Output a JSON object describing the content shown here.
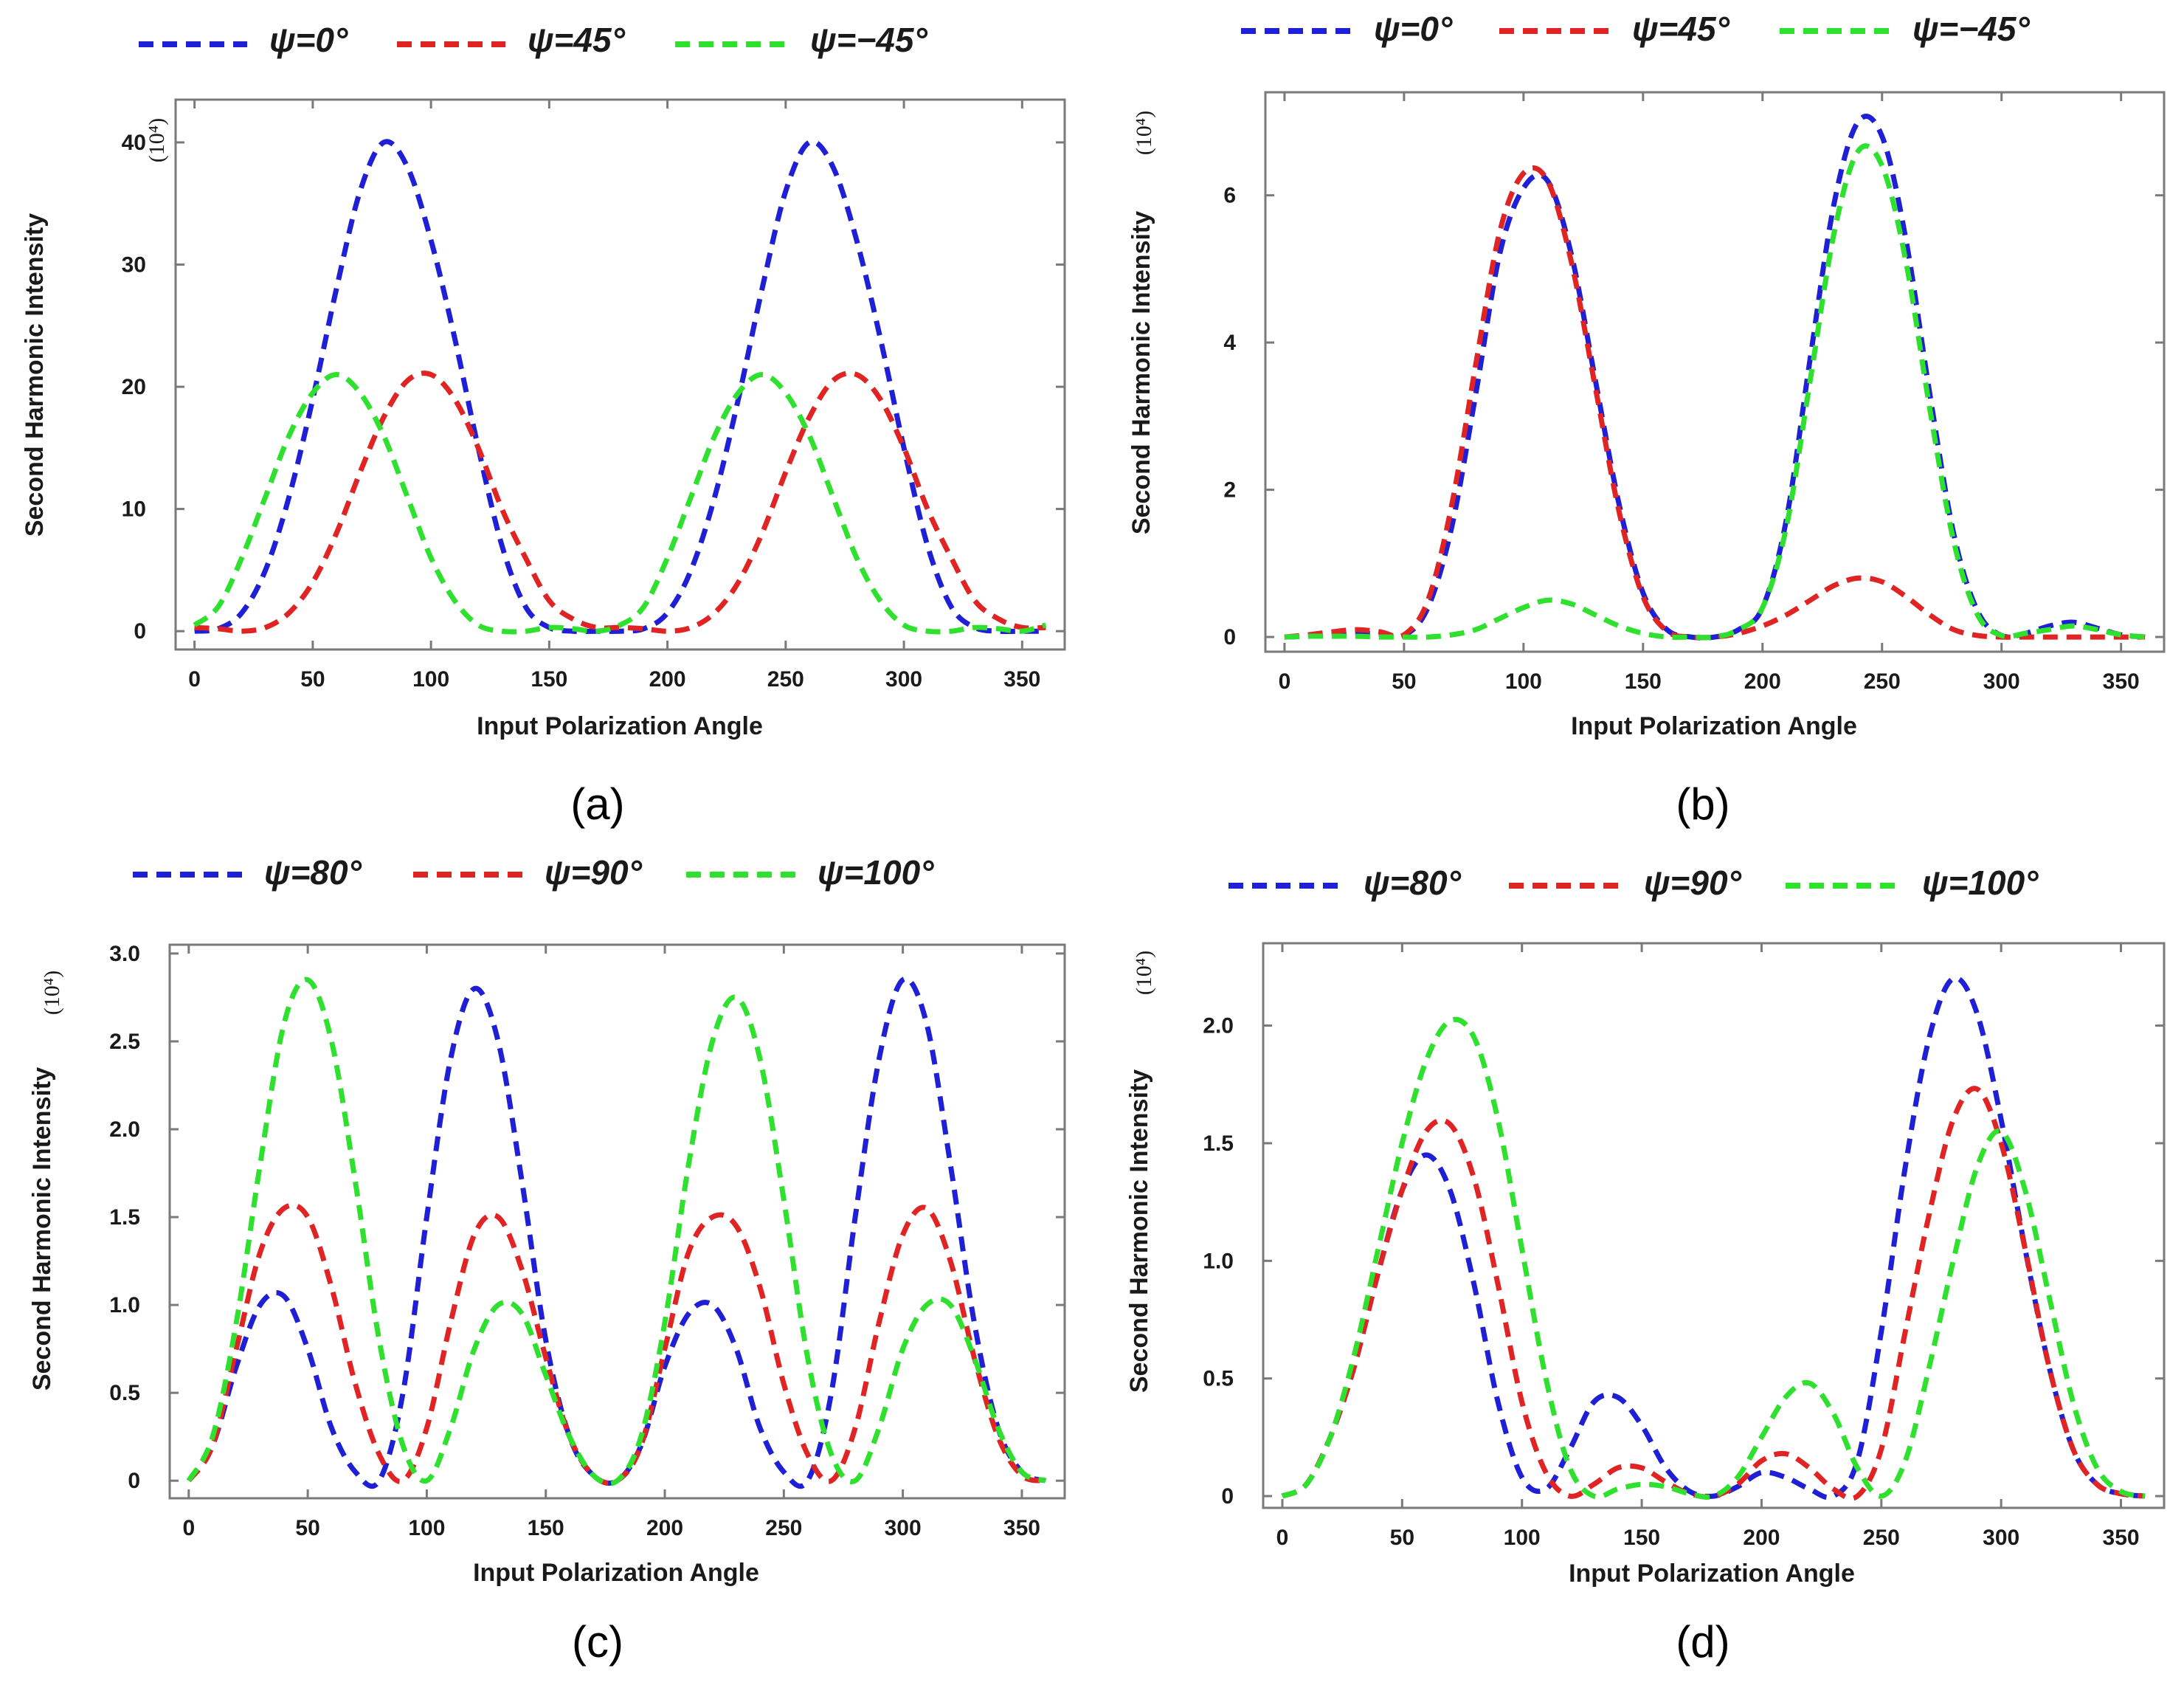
{
  "colors": {
    "blue": "#1f1fd6",
    "red": "#e02424",
    "green": "#2fe02f",
    "axis": "#7a7a7a"
  },
  "chart_data": [
    {
      "id": "a",
      "type": "line",
      "caption": "(a)",
      "xlabel": "Input  Polarization Angle",
      "ylabel": "Second Harmonic Intensity",
      "unit": "(10⁴)",
      "xlim": [
        -8,
        368
      ],
      "ylim": [
        -1.5,
        43.5
      ],
      "xticks": [
        0,
        50,
        100,
        150,
        200,
        250,
        300,
        350
      ],
      "yticks": [
        0,
        10,
        20,
        30,
        40
      ],
      "ytick_labels": [
        "0",
        "10",
        "20",
        "30",
        "40"
      ],
      "legend": [
        "ψ=0°",
        "ψ=45°",
        "ψ=−45°"
      ],
      "series": [
        {
          "name": "ψ=0°",
          "color": "blue",
          "x": [
            0,
            10,
            20,
            30,
            40,
            50,
            60,
            70,
            80,
            90,
            100,
            110,
            120,
            130,
            140,
            150,
            160,
            170,
            180,
            190,
            200,
            210,
            220,
            230,
            240,
            250,
            260,
            270,
            280,
            290,
            300,
            310,
            320,
            330,
            340,
            350,
            360
          ],
          "y": [
            0,
            0.2,
            1.5,
            5,
            11,
            19,
            28,
            36,
            40,
            38,
            32,
            24,
            15,
            7,
            2,
            0.3,
            0,
            0,
            0,
            0.2,
            1.5,
            5,
            11,
            19,
            28,
            36,
            40,
            38,
            32,
            24,
            15,
            7,
            2,
            0.3,
            0,
            0,
            0
          ]
        },
        {
          "name": "ψ=45°",
          "color": "red",
          "x": [
            0,
            10,
            20,
            30,
            40,
            50,
            60,
            70,
            80,
            90,
            100,
            110,
            120,
            130,
            140,
            150,
            160,
            170,
            180,
            190,
            200,
            210,
            220,
            230,
            240,
            250,
            260,
            270,
            280,
            290,
            300,
            310,
            320,
            330,
            340,
            350,
            360
          ],
          "y": [
            0.3,
            0.2,
            0,
            0.3,
            1.5,
            4,
            8,
            13,
            17.5,
            20.5,
            21,
            19,
            15,
            10,
            6,
            2.5,
            1,
            0.3,
            0.3,
            0.2,
            0,
            0.3,
            1.5,
            4,
            8,
            13,
            17.5,
            20.5,
            21,
            19,
            15,
            10,
            6,
            2.5,
            1,
            0.3,
            0.3
          ]
        },
        {
          "name": "ψ=−45°",
          "color": "green",
          "x": [
            0,
            10,
            20,
            30,
            40,
            50,
            60,
            70,
            80,
            90,
            100,
            110,
            120,
            130,
            140,
            150,
            160,
            170,
            180,
            190,
            200,
            210,
            220,
            230,
            240,
            250,
            260,
            270,
            280,
            290,
            300,
            310,
            320,
            330,
            340,
            350,
            360
          ],
          "y": [
            0.5,
            2,
            6,
            11,
            16,
            19.5,
            21,
            19.5,
            16,
            11,
            6,
            2.5,
            0.5,
            0,
            0,
            0.3,
            0.2,
            0,
            0.5,
            2,
            6,
            11,
            16,
            19.5,
            21,
            19.5,
            16,
            11,
            6,
            2.5,
            0.5,
            0,
            0,
            0.3,
            0.2,
            0,
            0.5
          ]
        }
      ]
    },
    {
      "id": "b",
      "type": "line",
      "caption": "(b)",
      "xlabel": "Input  Polarization Angle",
      "ylabel": "Second Harmonic Intensity",
      "unit": "(10⁴)",
      "xlim": [
        -8,
        368
      ],
      "ylim": [
        -0.2,
        7.4
      ],
      "xticks": [
        0,
        50,
        100,
        150,
        200,
        250,
        300,
        350
      ],
      "yticks": [
        0,
        2,
        4,
        6
      ],
      "ytick_labels": [
        "0",
        "2",
        "4",
        "6"
      ],
      "legend": [
        "ψ=0°",
        "ψ=45°",
        "ψ=−45°"
      ],
      "series": [
        {
          "name": "ψ=0°",
          "color": "blue",
          "x": [
            0,
            10,
            20,
            30,
            40,
            50,
            60,
            70,
            80,
            90,
            100,
            110,
            120,
            130,
            140,
            150,
            160,
            170,
            180,
            190,
            200,
            210,
            220,
            230,
            240,
            250,
            260,
            270,
            280,
            290,
            300,
            310,
            320,
            330,
            340,
            350,
            360
          ],
          "y": [
            0,
            0.01,
            0.03,
            0.05,
            0.04,
            0.02,
            0.4,
            1.5,
            3.3,
            5.2,
            6.1,
            6.2,
            5.2,
            3.5,
            1.8,
            0.6,
            0.1,
            0,
            0,
            0.1,
            0.4,
            1.6,
            3.8,
            5.9,
            7.0,
            6.8,
            5.4,
            3.3,
            1.4,
            0.35,
            0.02,
            0.05,
            0.15,
            0.2,
            0.12,
            0.03,
            0
          ]
        },
        {
          "name": "ψ=45°",
          "color": "red",
          "x": [
            0,
            10,
            20,
            30,
            40,
            50,
            60,
            70,
            80,
            90,
            100,
            110,
            120,
            130,
            140,
            150,
            160,
            170,
            180,
            190,
            200,
            210,
            220,
            230,
            240,
            250,
            260,
            270,
            280,
            290,
            300,
            310,
            320,
            330,
            340,
            350,
            360
          ],
          "y": [
            0,
            0.03,
            0.07,
            0.1,
            0.07,
            0.03,
            0.5,
            1.8,
            3.7,
            5.5,
            6.3,
            6.2,
            5.1,
            3.4,
            1.7,
            0.55,
            0.08,
            0,
            0,
            0.05,
            0.15,
            0.3,
            0.5,
            0.7,
            0.8,
            0.75,
            0.55,
            0.3,
            0.1,
            0.02,
            0,
            0,
            0,
            0,
            0,
            0,
            0
          ]
        },
        {
          "name": "ψ=−45°",
          "color": "green",
          "x": [
            0,
            10,
            20,
            30,
            40,
            50,
            60,
            70,
            80,
            90,
            100,
            110,
            120,
            130,
            140,
            150,
            160,
            170,
            180,
            190,
            200,
            210,
            220,
            230,
            240,
            250,
            260,
            270,
            280,
            290,
            300,
            310,
            320,
            330,
            340,
            350,
            360
          ],
          "y": [
            0,
            0.01,
            0.01,
            0.01,
            0,
            0,
            0,
            0.03,
            0.1,
            0.25,
            0.4,
            0.5,
            0.45,
            0.3,
            0.15,
            0.05,
            0,
            0,
            0,
            0.1,
            0.4,
            1.5,
            3.5,
            5.5,
            6.6,
            6.4,
            5.1,
            3.1,
            1.3,
            0.3,
            0.02,
            0.05,
            0.1,
            0.15,
            0.1,
            0.03,
            0
          ]
        }
      ]
    },
    {
      "id": "c",
      "type": "line",
      "caption": "(c)",
      "xlabel": "Input Polarization Angle",
      "ylabel": "Second Harmonic Intensity",
      "unit": "(10⁴)",
      "xlim": [
        -8,
        368
      ],
      "ylim": [
        -0.1,
        3.05
      ],
      "xticks": [
        0,
        50,
        100,
        150,
        200,
        250,
        300,
        350
      ],
      "yticks": [
        0,
        0.5,
        1.0,
        1.5,
        2.0,
        2.5,
        3.0
      ],
      "ytick_labels": [
        "0",
        "0.5",
        "1.0",
        "1.5",
        "2.0",
        "2.5",
        "3.0"
      ],
      "legend": [
        "ψ=80°",
        "ψ=90°",
        "ψ=100°"
      ],
      "series": [
        {
          "name": "ψ=80°",
          "color": "blue",
          "x": [
            0,
            10,
            20,
            30,
            40,
            50,
            60,
            70,
            80,
            90,
            100,
            110,
            120,
            130,
            140,
            150,
            160,
            170,
            180,
            190,
            200,
            210,
            220,
            230,
            240,
            250,
            260,
            270,
            280,
            290,
            300,
            310,
            320,
            330,
            340,
            350,
            360
          ],
          "y": [
            0,
            0.2,
            0.65,
            1.0,
            1.05,
            0.75,
            0.3,
            0.05,
            0,
            0.5,
            1.5,
            2.4,
            2.8,
            2.5,
            1.7,
            0.8,
            0.25,
            0.03,
            0,
            0.2,
            0.65,
            0.95,
            1.0,
            0.75,
            0.3,
            0.05,
            0,
            0.5,
            1.5,
            2.4,
            2.85,
            2.6,
            1.8,
            0.9,
            0.3,
            0.05,
            0
          ]
        },
        {
          "name": "ψ=90°",
          "color": "red",
          "x": [
            0,
            10,
            20,
            30,
            40,
            50,
            60,
            70,
            80,
            90,
            100,
            110,
            120,
            130,
            140,
            150,
            160,
            170,
            180,
            190,
            200,
            210,
            220,
            230,
            240,
            250,
            260,
            270,
            280,
            290,
            300,
            310,
            320,
            330,
            340,
            350,
            360
          ],
          "y": [
            0,
            0.2,
            0.75,
            1.3,
            1.55,
            1.5,
            1.1,
            0.55,
            0.15,
            0,
            0.3,
            0.9,
            1.4,
            1.5,
            1.2,
            0.7,
            0.25,
            0.03,
            0,
            0.2,
            0.75,
            1.3,
            1.5,
            1.45,
            1.1,
            0.55,
            0.15,
            0,
            0.3,
            0.9,
            1.4,
            1.55,
            1.25,
            0.7,
            0.25,
            0.03,
            0
          ]
        },
        {
          "name": "ψ=100°",
          "color": "green",
          "x": [
            0,
            10,
            20,
            30,
            40,
            50,
            60,
            70,
            80,
            90,
            100,
            110,
            120,
            130,
            140,
            150,
            160,
            170,
            180,
            190,
            200,
            210,
            220,
            230,
            240,
            250,
            260,
            270,
            280,
            290,
            300,
            310,
            320,
            330,
            340,
            350,
            360
          ],
          "y": [
            0,
            0.25,
            0.9,
            1.8,
            2.6,
            2.85,
            2.5,
            1.7,
            0.8,
            0.2,
            0,
            0.3,
            0.75,
            1.0,
            0.95,
            0.6,
            0.25,
            0.03,
            0,
            0.25,
            0.9,
            1.8,
            2.5,
            2.75,
            2.4,
            1.6,
            0.7,
            0.15,
            0,
            0.3,
            0.75,
            1.0,
            1.0,
            0.7,
            0.3,
            0.05,
            0
          ]
        }
      ]
    },
    {
      "id": "d",
      "type": "line",
      "caption": "(d)",
      "xlabel": "Input Polarization Angle",
      "ylabel": "Second Harmonic Intensity",
      "unit": "(10⁴)",
      "xlim": [
        -8,
        368
      ],
      "ylim": [
        -0.05,
        2.35
      ],
      "xticks": [
        0,
        50,
        100,
        150,
        200,
        250,
        300,
        350
      ],
      "yticks": [
        0,
        0.5,
        1.0,
        1.5,
        2.0
      ],
      "ytick_labels": [
        "0",
        "0.5",
        "1.0",
        "1.5",
        "2.0"
      ],
      "legend": [
        "ψ=80°",
        "ψ=90°",
        "ψ=100°"
      ],
      "series": [
        {
          "name": "ψ=80°",
          "color": "blue",
          "x": [
            0,
            10,
            20,
            30,
            40,
            50,
            60,
            70,
            80,
            90,
            100,
            110,
            120,
            130,
            140,
            150,
            160,
            170,
            180,
            190,
            200,
            210,
            220,
            230,
            240,
            250,
            260,
            270,
            280,
            290,
            300,
            310,
            320,
            330,
            340,
            350,
            360
          ],
          "y": [
            0,
            0.05,
            0.25,
            0.55,
            0.95,
            1.3,
            1.45,
            1.3,
            0.9,
            0.4,
            0.08,
            0.03,
            0.2,
            0.4,
            0.42,
            0.3,
            0.12,
            0.02,
            0,
            0.04,
            0.1,
            0.08,
            0.03,
            0,
            0.15,
            0.7,
            1.4,
            1.95,
            2.2,
            2.05,
            1.6,
            1.05,
            0.55,
            0.2,
            0.05,
            0.01,
            0
          ]
        },
        {
          "name": "ψ=90°",
          "color": "red",
          "x": [
            0,
            10,
            20,
            30,
            40,
            50,
            60,
            70,
            80,
            90,
            100,
            110,
            120,
            130,
            140,
            150,
            160,
            170,
            180,
            190,
            200,
            210,
            220,
            230,
            240,
            250,
            260,
            270,
            280,
            290,
            300,
            310,
            320,
            330,
            340,
            350,
            360
          ],
          "y": [
            0,
            0.05,
            0.25,
            0.55,
            0.95,
            1.3,
            1.55,
            1.58,
            1.35,
            0.9,
            0.4,
            0.1,
            0,
            0.05,
            0.12,
            0.12,
            0.06,
            0.01,
            0,
            0.05,
            0.15,
            0.18,
            0.12,
            0.03,
            0,
            0.2,
            0.7,
            1.2,
            1.6,
            1.73,
            1.5,
            1.05,
            0.55,
            0.2,
            0.05,
            0.01,
            0
          ]
        },
        {
          "name": "ψ=100°",
          "color": "green",
          "x": [
            0,
            10,
            20,
            30,
            40,
            50,
            60,
            70,
            80,
            90,
            100,
            110,
            120,
            130,
            140,
            150,
            160,
            170,
            180,
            190,
            200,
            210,
            220,
            230,
            240,
            250,
            260,
            270,
            280,
            290,
            300,
            310,
            320,
            330,
            340,
            350,
            360
          ],
          "y": [
            0,
            0.05,
            0.25,
            0.6,
            1.05,
            1.5,
            1.85,
            2.02,
            1.95,
            1.6,
            1.05,
            0.5,
            0.12,
            0,
            0.03,
            0.05,
            0.04,
            0.01,
            0,
            0.08,
            0.25,
            0.42,
            0.48,
            0.35,
            0.12,
            0,
            0.15,
            0.55,
            1.0,
            1.4,
            1.55,
            1.3,
            0.85,
            0.4,
            0.12,
            0.02,
            0
          ]
        }
      ]
    }
  ]
}
